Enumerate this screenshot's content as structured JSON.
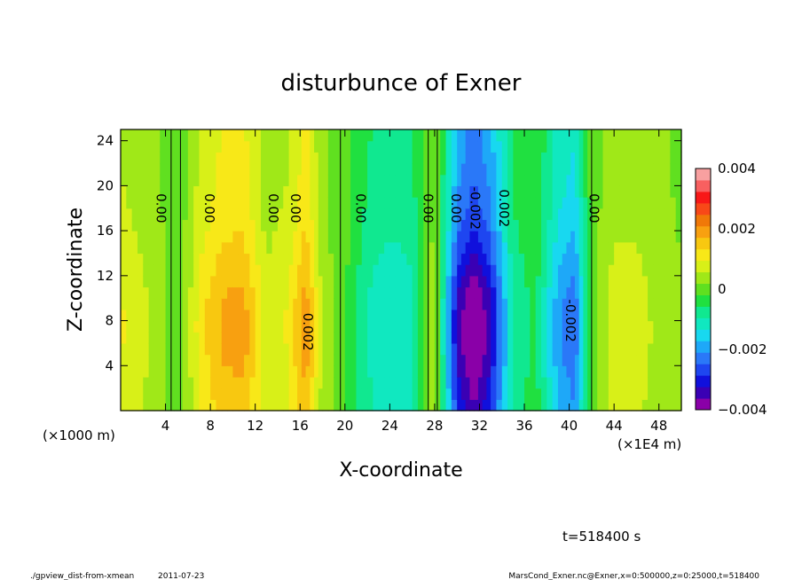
{
  "chart_data": {
    "type": "heatmap",
    "title": "disturbunce of Exner",
    "xlabel": "X-coordinate",
    "ylabel": "Z-coordinate",
    "x_unit_left": "(×1000 m)",
    "x_unit_right": "(×1E4 m)",
    "xlim": [
      0,
      50
    ],
    "ylim": [
      0,
      25
    ],
    "x_ticks": [
      "4",
      "8",
      "12",
      "16",
      "20",
      "24",
      "28",
      "32",
      "36",
      "40",
      "44",
      "48"
    ],
    "x_tick_values": [
      4,
      8,
      12,
      16,
      20,
      24,
      28,
      32,
      36,
      40,
      44,
      48
    ],
    "y_ticks": [
      "4",
      "8",
      "12",
      "16",
      "20",
      "24"
    ],
    "y_tick_values": [
      4,
      8,
      12,
      16,
      20,
      24
    ],
    "colorbar": {
      "range": [
        -0.004,
        0.004
      ],
      "labels": [
        "0.004",
        "0.002",
        "0",
        "−0.002",
        "−0.004"
      ],
      "label_values": [
        0.004,
        0.002,
        0,
        -0.002,
        -0.004
      ],
      "colors": [
        "#8a00a8",
        "#3a00b4",
        "#1010dc",
        "#1e46f0",
        "#2a78f8",
        "#1ea8f8",
        "#18d8f0",
        "#10e8c0",
        "#10e890",
        "#20e040",
        "#60e020",
        "#a0e818",
        "#d8f018",
        "#f8e818",
        "#f8c810",
        "#f8a010",
        "#f07808",
        "#f84818",
        "#f81818",
        "#f86060",
        "#f8a0a0"
      ]
    },
    "columns": [
      {
        "x": 0,
        "value": 0.0009
      },
      {
        "x": 2,
        "value": 0.0006
      },
      {
        "x": 4,
        "value": 0.0002
      },
      {
        "x": 5,
        "value": -0.0002
      },
      {
        "x": 7,
        "value": 0.001
      },
      {
        "x": 9,
        "value": 0.0016
      },
      {
        "x": 11,
        "value": 0.0017
      },
      {
        "x": 13,
        "value": 0.0006
      },
      {
        "x": 15,
        "value": 0.0009
      },
      {
        "x": 16.5,
        "value": 0.0018
      },
      {
        "x": 18,
        "value": 0.0004
      },
      {
        "x": 20,
        "value": -0.0001
      },
      {
        "x": 22,
        "value": -0.0009
      },
      {
        "x": 24,
        "value": -0.0012
      },
      {
        "x": 26,
        "value": -0.001
      },
      {
        "x": 28,
        "value": 0.0004
      },
      {
        "x": 30,
        "value": -0.003
      },
      {
        "x": 31.5,
        "value": -0.0038
      },
      {
        "x": 33,
        "value": -0.003
      },
      {
        "x": 35,
        "value": -0.0008
      },
      {
        "x": 37,
        "value": -0.0004
      },
      {
        "x": 39,
        "value": -0.0018
      },
      {
        "x": 40.5,
        "value": -0.0022
      },
      {
        "x": 42,
        "value": 0.0
      },
      {
        "x": 44,
        "value": 0.0007
      },
      {
        "x": 46,
        "value": 0.0007
      },
      {
        "x": 48,
        "value": 0.0004
      },
      {
        "x": 50,
        "value": 0.0002
      }
    ],
    "contour_labels": [
      {
        "text": "0.00",
        "x": 3.2,
        "z": 18
      },
      {
        "text": "0.00",
        "x": 7.5,
        "z": 18
      },
      {
        "text": "0.00",
        "x": 13.2,
        "z": 18
      },
      {
        "text": "0.00",
        "x": 15.2,
        "z": 18
      },
      {
        "text": "0.00",
        "x": 21.0,
        "z": 18
      },
      {
        "text": "0.00",
        "x": 27.0,
        "z": 18
      },
      {
        "text": "0.00",
        "x": 29.5,
        "z": 18
      },
      {
        "text": "-0.002",
        "x": 31.2,
        "z": 18
      },
      {
        "text": "0.002",
        "x": 33.8,
        "z": 18
      },
      {
        "text": "0.00",
        "x": 41.8,
        "z": 18
      },
      {
        "text": "0.002",
        "x": 16.3,
        "z": 7
      },
      {
        "text": "-0.002",
        "x": 39.7,
        "z": 8
      }
    ]
  },
  "footer": {
    "time_label": "t=518400 s",
    "script_name": "./gpview_dist-from-xmean",
    "date": "2011-07-23",
    "variable_info": "MarsCond_Exner.nc@Exner,x=0:500000,z=0:25000,t=518400"
  }
}
